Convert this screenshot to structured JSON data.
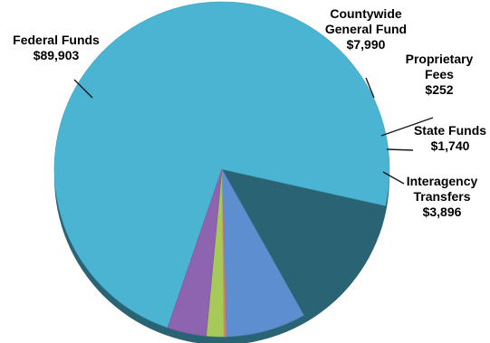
{
  "chart_data": {
    "type": "pie",
    "title": "",
    "slices": [
      {
        "label": "Federal Funds",
        "value_label": "$89,903",
        "value": 89903,
        "color": "#4ab4d2"
      },
      {
        "label": "Countywide General Fund",
        "value_label": "$7,990",
        "value": 7990,
        "color": "#5c8ed0"
      },
      {
        "label": "Proprietary Fees",
        "value_label": "$252",
        "value": 252,
        "color": "#e07a6a"
      },
      {
        "label": "State Funds",
        "value_label": "$1,740",
        "value": 1740,
        "color": "#a6c95a"
      },
      {
        "label": "Interagency Transfers",
        "value_label": "$3,896",
        "value": 3896,
        "color": "#8e63b0"
      }
    ],
    "label_lines": [
      [
        "Federal Funds",
        "$89,903"
      ],
      [
        "Countywide",
        "General Fund",
        "$7,990"
      ],
      [
        "Proprietary",
        "Fees",
        "$252"
      ],
      [
        "State Funds",
        "$1,740"
      ],
      [
        "Interagency",
        "Transfers",
        "$3,896"
      ]
    ],
    "legend": "none"
  }
}
